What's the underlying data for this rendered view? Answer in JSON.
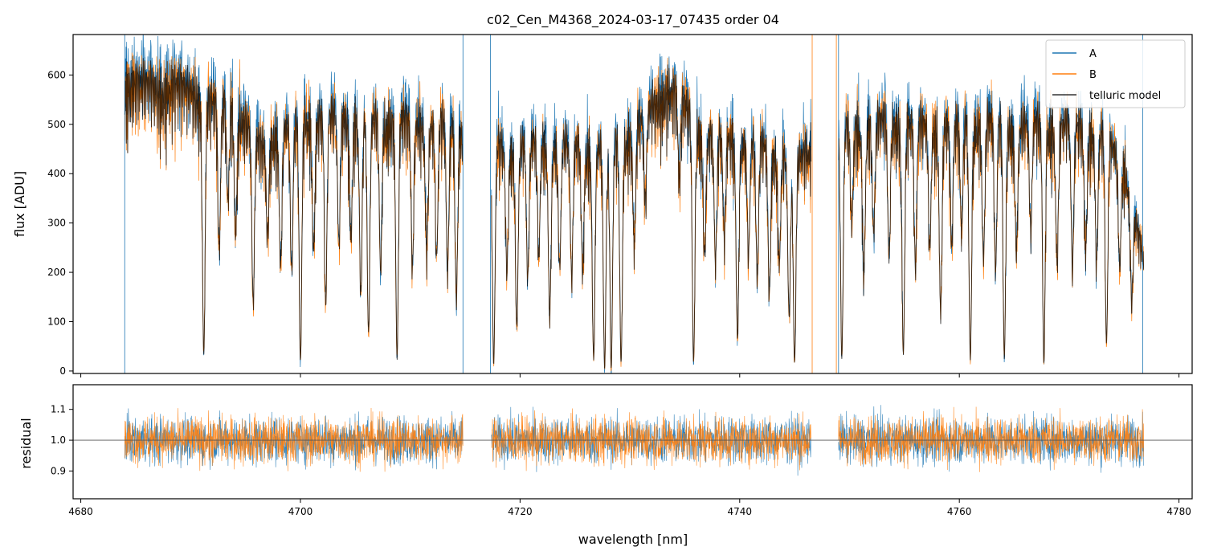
{
  "chart_data": [
    {
      "type": "line",
      "panel": "top",
      "title": "c02_Cen_M4368_2024-03-17_07435  order 04",
      "xlabel": "",
      "ylabel": "flux [ADU]",
      "xlim": [
        4679.3,
        4781.2
      ],
      "ylim": [
        -5,
        682
      ],
      "yticks": [
        0,
        100,
        200,
        300,
        400,
        500,
        600
      ],
      "xticks": [
        4680,
        4700,
        4720,
        4740,
        4760,
        4780
      ],
      "legend": {
        "placement": "top-right",
        "entries": [
          "A",
          "B",
          "telluric model"
        ]
      },
      "segments": [
        [
          4684.0,
          4714.8
        ],
        [
          4717.4,
          4746.5
        ],
        [
          4749.0,
          4776.8
        ]
      ],
      "continuum_model": {
        "x": [
          4684,
          4686,
          4688,
          4690,
          4691,
          4692,
          4694,
          4695.5,
          4696.5,
          4698,
          4700,
          4702,
          4704,
          4706,
          4708,
          4710,
          4712,
          4714.8,
          4717.4,
          4720,
          4722,
          4724,
          4726,
          4728,
          4730,
          4732,
          4733.5,
          4735,
          4737,
          4739,
          4741,
          4743,
          4745,
          4746.5,
          4749,
          4751,
          4753,
          4755,
          4757,
          4759,
          4761,
          4763,
          4765,
          4767,
          4769,
          4771,
          4773,
          4775,
          4776.8
        ],
        "y": [
          610,
          605,
          600,
          595,
          585,
          565,
          560,
          510,
          470,
          510,
          530,
          540,
          540,
          530,
          535,
          530,
          525,
          520,
          470,
          480,
          485,
          480,
          475,
          470,
          500,
          560,
          600,
          560,
          495,
          495,
          485,
          470,
          440,
          480,
          510,
          520,
          530,
          525,
          520,
          520,
          525,
          530,
          520,
          525,
          520,
          520,
          500,
          440,
          230
        ]
      },
      "absorption_lines": [
        {
          "x": 4691.2,
          "depth": 0.94
        },
        {
          "x": 4692.6,
          "depth": 0.55
        },
        {
          "x": 4693.4,
          "depth": 0.35
        },
        {
          "x": 4694.1,
          "depth": 0.45
        },
        {
          "x": 4695.7,
          "depth": 0.72
        },
        {
          "x": 4697.0,
          "depth": 0.4
        },
        {
          "x": 4698.2,
          "depth": 0.55
        },
        {
          "x": 4699.2,
          "depth": 0.6
        },
        {
          "x": 4700.0,
          "depth": 0.96
        },
        {
          "x": 4701.2,
          "depth": 0.5
        },
        {
          "x": 4702.3,
          "depth": 0.75
        },
        {
          "x": 4703.5,
          "depth": 0.5
        },
        {
          "x": 4704.6,
          "depth": 0.45
        },
        {
          "x": 4705.5,
          "depth": 0.7
        },
        {
          "x": 4706.2,
          "depth": 0.85
        },
        {
          "x": 4707.3,
          "depth": 0.6
        },
        {
          "x": 4708.8,
          "depth": 0.95
        },
        {
          "x": 4710.2,
          "depth": 0.6
        },
        {
          "x": 4711.5,
          "depth": 0.5
        },
        {
          "x": 4712.4,
          "depth": 0.55
        },
        {
          "x": 4713.4,
          "depth": 0.6
        },
        {
          "x": 4714.2,
          "depth": 0.7
        },
        {
          "x": 4717.6,
          "depth": 0.97
        },
        {
          "x": 4718.8,
          "depth": 0.55
        },
        {
          "x": 4719.7,
          "depth": 0.8
        },
        {
          "x": 4720.7,
          "depth": 0.6
        },
        {
          "x": 4721.7,
          "depth": 0.5
        },
        {
          "x": 4722.7,
          "depth": 0.75
        },
        {
          "x": 4723.6,
          "depth": 0.55
        },
        {
          "x": 4724.7,
          "depth": 0.6
        },
        {
          "x": 4725.7,
          "depth": 0.55
        },
        {
          "x": 4726.7,
          "depth": 0.95
        },
        {
          "x": 4727.7,
          "depth": 0.99
        },
        {
          "x": 4728.3,
          "depth": 0.99
        },
        {
          "x": 4729.2,
          "depth": 0.96
        },
        {
          "x": 4730.4,
          "depth": 0.5
        },
        {
          "x": 4731.4,
          "depth": 0.35
        },
        {
          "x": 4734.5,
          "depth": 0.3
        },
        {
          "x": 4735.8,
          "depth": 0.96
        },
        {
          "x": 4736.8,
          "depth": 0.5
        },
        {
          "x": 4737.8,
          "depth": 0.55
        },
        {
          "x": 4738.6,
          "depth": 0.45
        },
        {
          "x": 4739.8,
          "depth": 0.85
        },
        {
          "x": 4740.8,
          "depth": 0.5
        },
        {
          "x": 4741.6,
          "depth": 0.6
        },
        {
          "x": 4742.7,
          "depth": 0.65
        },
        {
          "x": 4743.6,
          "depth": 0.5
        },
        {
          "x": 4744.5,
          "depth": 0.75
        },
        {
          "x": 4745.0,
          "depth": 0.96
        },
        {
          "x": 4749.3,
          "depth": 0.95
        },
        {
          "x": 4750.2,
          "depth": 0.4
        },
        {
          "x": 4751.3,
          "depth": 0.6
        },
        {
          "x": 4752.2,
          "depth": 0.45
        },
        {
          "x": 4753.6,
          "depth": 0.55
        },
        {
          "x": 4754.9,
          "depth": 0.93
        },
        {
          "x": 4756.0,
          "depth": 0.6
        },
        {
          "x": 4757.3,
          "depth": 0.5
        },
        {
          "x": 4758.3,
          "depth": 0.75
        },
        {
          "x": 4759.3,
          "depth": 0.5
        },
        {
          "x": 4760.2,
          "depth": 0.45
        },
        {
          "x": 4761.0,
          "depth": 0.95
        },
        {
          "x": 4762.2,
          "depth": 0.55
        },
        {
          "x": 4763.3,
          "depth": 0.6
        },
        {
          "x": 4764.1,
          "depth": 0.95
        },
        {
          "x": 4765.2,
          "depth": 0.5
        },
        {
          "x": 4766.5,
          "depth": 0.45
        },
        {
          "x": 4767.7,
          "depth": 0.97
        },
        {
          "x": 4768.9,
          "depth": 0.55
        },
        {
          "x": 4770.3,
          "depth": 0.6
        },
        {
          "x": 4771.5,
          "depth": 0.5
        },
        {
          "x": 4772.5,
          "depth": 0.55
        },
        {
          "x": 4773.4,
          "depth": 0.88
        },
        {
          "x": 4774.6,
          "depth": 0.5
        },
        {
          "x": 4775.7,
          "depth": 0.6
        }
      ],
      "series": [
        {
          "name": "A",
          "color": "#1f77b4",
          "noise_adu": 35,
          "scale": 1.03
        },
        {
          "name": "B",
          "color": "#ff7f0e",
          "noise_adu": 35,
          "scale": 0.99
        },
        {
          "name": "telluric model",
          "color": "#000000",
          "opacity": 0.7
        }
      ],
      "spikes_A": [
        4684.0,
        4714.8,
        4717.3,
        4749.0,
        4776.7
      ],
      "spikes_B": [
        4746.6,
        4748.8
      ]
    },
    {
      "type": "line",
      "panel": "bottom",
      "xlabel": "wavelength [nm]",
      "ylabel": "residual",
      "xlim": [
        4679.3,
        4781.2
      ],
      "ylim": [
        0.81,
        1.18
      ],
      "yticks": [
        0.9,
        1.0,
        1.1
      ],
      "ytick_labels": [
        "0.9",
        "1.0",
        "1.1"
      ],
      "xticks": [
        4680,
        4700,
        4720,
        4740,
        4760,
        4780
      ],
      "reference_line": 1.0,
      "segments": [
        [
          4684.0,
          4714.8
        ],
        [
          4717.4,
          4746.5
        ],
        [
          4749.0,
          4776.8
        ]
      ],
      "series": [
        {
          "name": "A",
          "color": "#1f77b4",
          "center": 1.0,
          "noise": 0.055
        },
        {
          "name": "B",
          "color": "#ff7f0e",
          "center": 1.0,
          "noise": 0.055
        }
      ]
    }
  ]
}
